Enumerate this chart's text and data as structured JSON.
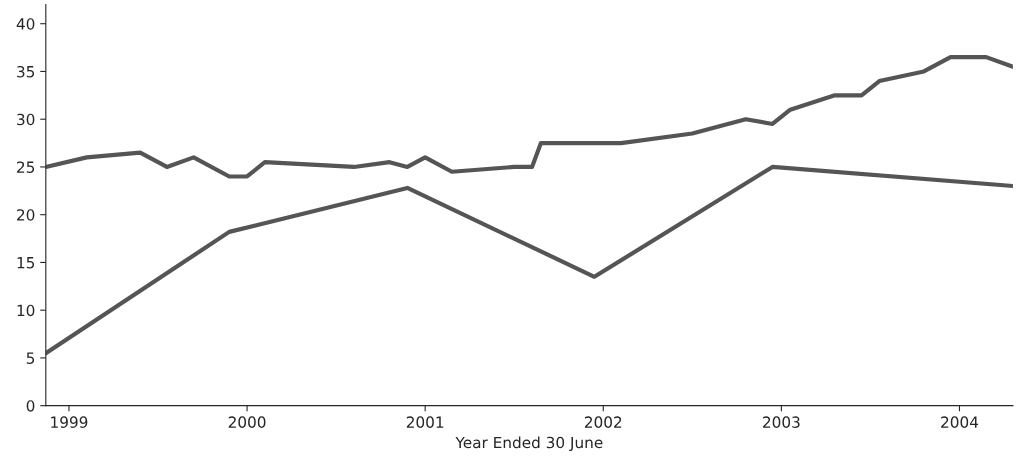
{
  "chart_data": {
    "type": "line",
    "xlabel": "Year Ended 30 June",
    "xlim": [
      1998.87,
      2004.3
    ],
    "xticks": [
      1999,
      2000,
      2001,
      2002,
      2003,
      2004
    ],
    "ylim": [
      0,
      42
    ],
    "yticks": [
      0,
      5,
      10,
      15,
      20,
      25,
      30,
      35,
      40
    ],
    "grid": false,
    "series": [
      {
        "color": "#555555",
        "x": [
          1998.87,
          1999.1,
          1999.4,
          1999.55,
          1999.7,
          1999.9,
          2000.0,
          2000.1,
          2000.6,
          2000.8,
          2000.9,
          2001.0,
          2001.15,
          2001.5,
          2001.6,
          2001.65,
          2002.1,
          2002.5,
          2002.8,
          2002.95,
          2003.05,
          2003.3,
          2003.45,
          2003.55,
          2003.8,
          2003.95,
          2004.15,
          2004.3
        ],
        "values": [
          25,
          26,
          26.5,
          25,
          26,
          24,
          24,
          25.5,
          25,
          25.5,
          25,
          26,
          24.5,
          25,
          25,
          27.5,
          27.5,
          28.5,
          30,
          29.5,
          31,
          32.5,
          32.5,
          34,
          35,
          36.5,
          36.5,
          35.5
        ]
      },
      {
        "color": "#555555",
        "x": [
          1998.87,
          1999.9,
          2000.9,
          2001.95,
          2002.95,
          2004.3
        ],
        "values": [
          5.5,
          18.2,
          22.8,
          13.5,
          25,
          23
        ]
      }
    ]
  }
}
